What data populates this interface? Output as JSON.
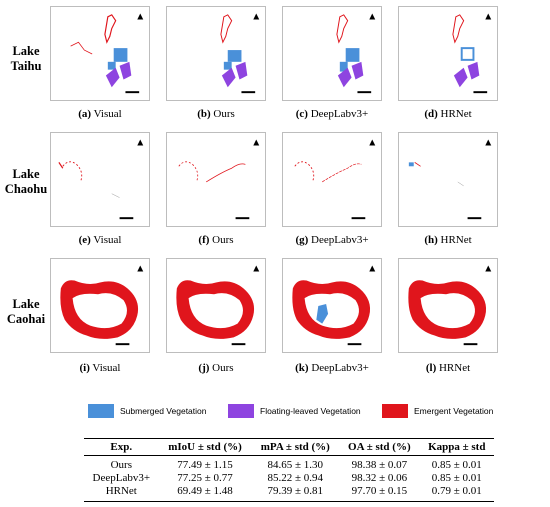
{
  "rows": [
    {
      "label_line1": "Lake",
      "label_line2": "Taihu"
    },
    {
      "label_line1": "Lake",
      "label_line2": "Chaohu"
    },
    {
      "label_line1": "Lake",
      "label_line2": "Caohai"
    }
  ],
  "captions": [
    {
      "letter": "(a)",
      "text": " Visual"
    },
    {
      "letter": "(b)",
      "text": " Ours"
    },
    {
      "letter": "(c)",
      "text": " DeepLabv3+"
    },
    {
      "letter": "(d)",
      "text": " HRNet"
    },
    {
      "letter": "(e)",
      "text": " Visual"
    },
    {
      "letter": "(f)",
      "text": " Ours"
    },
    {
      "letter": "(g)",
      "text": " DeepLabv3+"
    },
    {
      "letter": "(h)",
      "text": " HRNet"
    },
    {
      "letter": "(i)",
      "text": " Visual"
    },
    {
      "letter": "(j)",
      "text": " Ours"
    },
    {
      "letter": "(k)",
      "text": " DeepLabv3+"
    },
    {
      "letter": "(l)",
      "text": " HRNet"
    }
  ],
  "legend": [
    {
      "label": "Submerged Vegetation",
      "color": "#4a90d9"
    },
    {
      "label": "Floating-leaved Vegetation",
      "color": "#8e44e0"
    },
    {
      "label": "Emergent Vegetation",
      "color": "#e0151c"
    }
  ],
  "table": {
    "headers": [
      "Exp.",
      "mIoU ± std (%)",
      "mPA ± std (%)",
      "OA ± std (%)",
      "Kappa ± std"
    ],
    "rows": [
      [
        "Ours",
        "77.49 ± 1.15",
        "84.65 ± 1.30",
        "98.38 ± 0.07",
        "0.85 ± 0.01"
      ],
      [
        "DeepLabv3+",
        "77.25 ± 0.77",
        "85.22 ± 0.94",
        "98.32 ± 0.06",
        "0.85 ± 0.01"
      ],
      [
        "HRNet",
        "69.49 ± 1.48",
        "79.39 ± 0.81",
        "97.70 ± 0.15",
        "0.79 ± 0.01"
      ]
    ]
  }
}
